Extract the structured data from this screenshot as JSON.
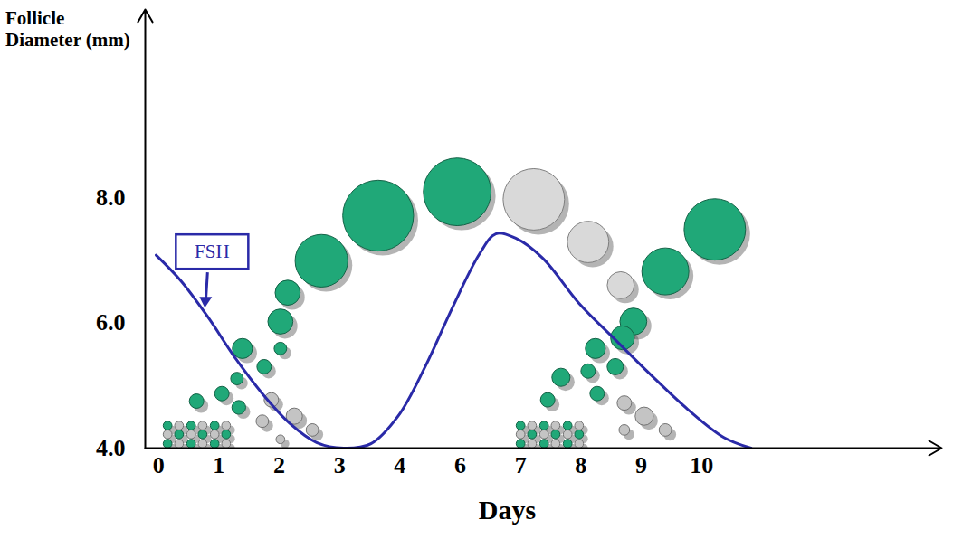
{
  "chart_data": {
    "type": "scatter",
    "x_label": "Days",
    "y_label": "Follicle Diameter (mm)",
    "categories": [
      "0",
      "1",
      "2",
      "3",
      "4",
      "6",
      "7",
      "8",
      "9",
      "10"
    ],
    "xlim": [
      -0.22,
      12.98
    ],
    "ylim": [
      4,
      11
    ],
    "yticks": [
      4,
      6,
      8
    ],
    "series": [
      {
        "name": "FSH",
        "type": "line",
        "color": "#2a2aa8",
        "x": [
          -0.04,
          0.37,
          0.82,
          1.27,
          1.72,
          2.17,
          2.62,
          3.07,
          3.52,
          3.97,
          4.42,
          4.87,
          5.32,
          5.59,
          5.92,
          6.37,
          6.97,
          7.57,
          8.17,
          8.77,
          9.37,
          9.82
        ],
        "values": [
          7.08,
          6.67,
          6.09,
          5.44,
          4.87,
          4.4,
          4.09,
          4.0,
          4.07,
          4.51,
          5.3,
          6.24,
          7.1,
          7.42,
          7.35,
          7.03,
          6.31,
          5.73,
          5.16,
          4.62,
          4.17,
          4.0
        ]
      }
    ],
    "follicles": [
      {
        "color": "#d9d9d9",
        "x": [
          6.22,
          7.12,
          7.66
        ],
        "y": [
          7.97,
          7.29,
          6.6
        ],
        "size": [
          0.98,
          0.66,
          0.43
        ]
      },
      {
        "color": "#c4c4c4",
        "x": [
          0.34,
          0.73,
          1.12,
          0.15,
          0.54,
          0.93,
          0.34,
          0.73,
          1.12,
          6.19,
          6.58,
          6.97,
          6.0,
          6.39,
          6.78,
          6.19,
          6.58,
          6.97,
          1.72,
          1.87,
          2.25,
          2.55,
          2.02,
          7.72,
          8.05,
          8.4,
          7.72
        ],
        "y": [
          4.36,
          4.36,
          4.36,
          4.22,
          4.22,
          4.22,
          4.07,
          4.07,
          4.07,
          4.36,
          4.36,
          4.36,
          4.22,
          4.22,
          4.22,
          4.07,
          4.07,
          4.07,
          4.43,
          4.77,
          4.51,
          4.29,
          4.14,
          4.72,
          4.51,
          4.29,
          4.29
        ],
        "size": [
          0.14,
          0.14,
          0.14,
          0.14,
          0.14,
          0.14,
          0.14,
          0.14,
          0.14,
          0.14,
          0.14,
          0.14,
          0.14,
          0.14,
          0.14,
          0.14,
          0.14,
          0.14,
          0.2,
          0.23,
          0.26,
          0.2,
          0.14,
          0.23,
          0.29,
          0.2,
          0.17
        ]
      },
      {
        "color": "#20a878",
        "x": [
          0.15,
          0.54,
          0.93,
          0.34,
          0.73,
          1.12,
          0.15,
          0.54,
          0.93,
          0.63,
          1.05,
          1.33,
          1.3,
          1.39,
          1.75,
          2.02,
          2.02,
          2.14,
          2.7,
          3.64,
          4.95,
          6.0,
          6.39,
          6.78,
          6.19,
          6.58,
          6.97,
          6.0,
          6.39,
          6.78,
          6.45,
          6.67,
          7.12,
          7.24,
          7.27,
          7.57,
          7.69,
          7.87,
          8.4,
          9.22
        ],
        "y": [
          4.36,
          4.36,
          4.36,
          4.22,
          4.22,
          4.22,
          4.07,
          4.07,
          4.07,
          4.75,
          4.87,
          4.65,
          5.11,
          5.59,
          5.3,
          5.59,
          6.02,
          6.48,
          6.99,
          7.71,
          8.09,
          4.36,
          4.36,
          4.36,
          4.22,
          4.22,
          4.22,
          4.07,
          4.07,
          4.07,
          4.77,
          5.13,
          5.23,
          5.59,
          4.87,
          5.3,
          5.76,
          6.02,
          6.82,
          7.49
        ],
        "size": [
          0.14,
          0.14,
          0.14,
          0.14,
          0.14,
          0.14,
          0.14,
          0.14,
          0.14,
          0.23,
          0.23,
          0.22,
          0.2,
          0.32,
          0.23,
          0.2,
          0.4,
          0.4,
          0.84,
          1.13,
          1.08,
          0.14,
          0.14,
          0.14,
          0.14,
          0.14,
          0.14,
          0.14,
          0.14,
          0.14,
          0.23,
          0.29,
          0.23,
          0.32,
          0.23,
          0.26,
          0.38,
          0.43,
          0.75,
          0.98
        ]
      }
    ]
  }
}
